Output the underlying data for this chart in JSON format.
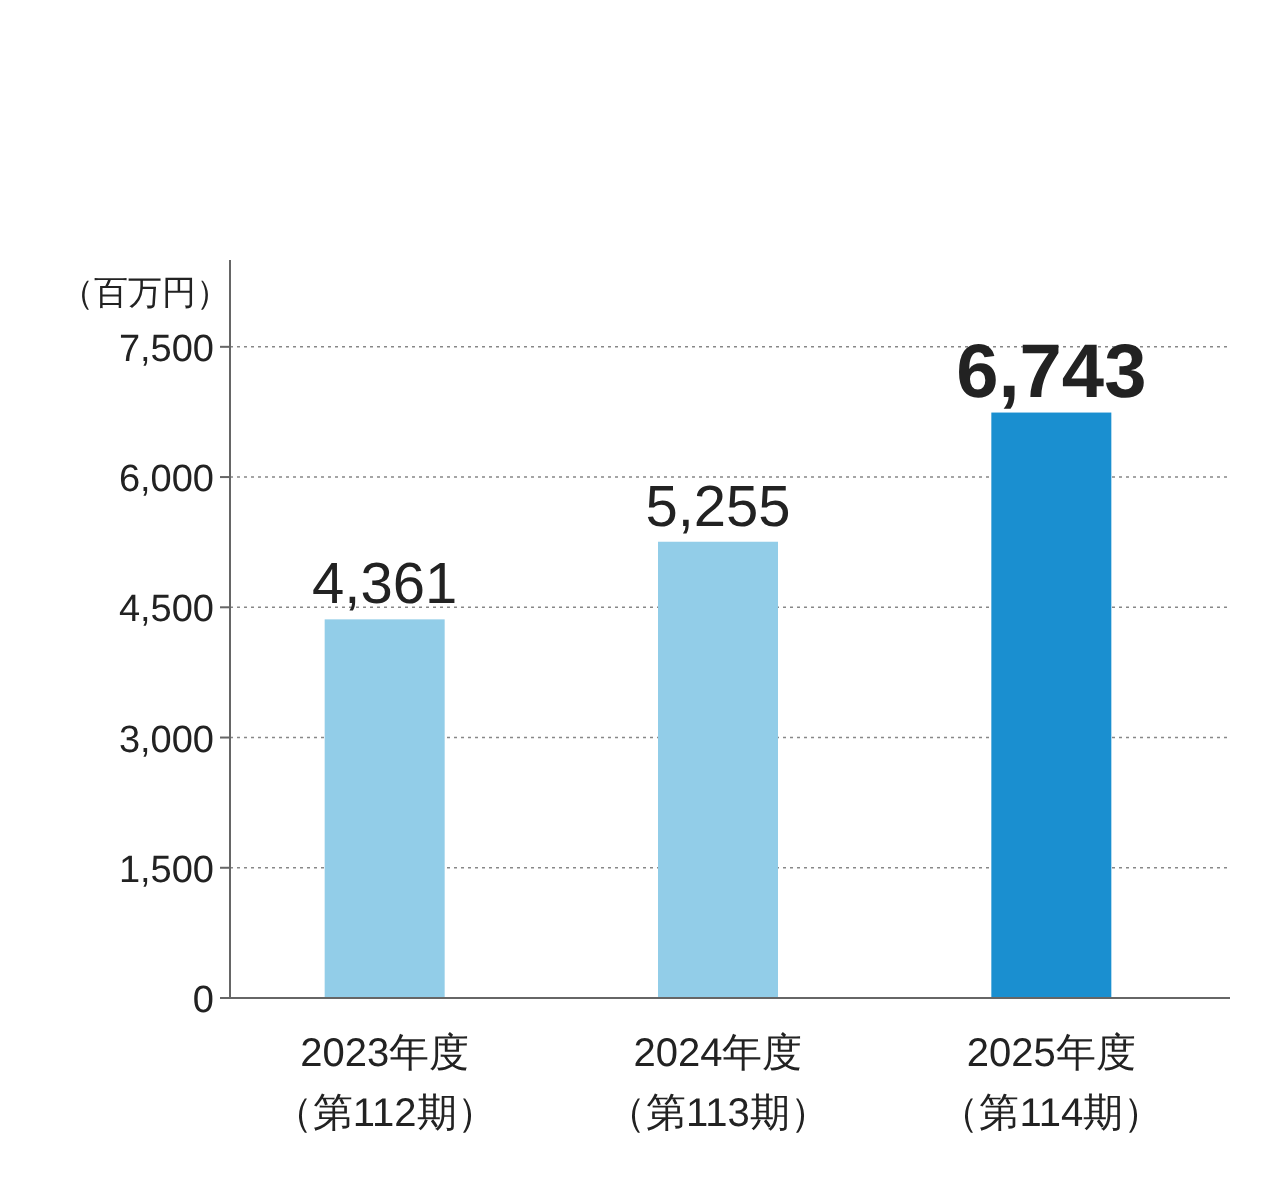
{
  "chart_data": {
    "type": "bar",
    "ylabel": "（百万円）",
    "categories": [
      "2023年度（第112期）",
      "2024年度（第113期）",
      "2025年度（第114期）"
    ],
    "values": [
      4361,
      5255,
      6743
    ],
    "colors": [
      "#92cde8",
      "#92cde8",
      "#1a8fd0"
    ],
    "ylim": [
      0,
      8500
    ],
    "yticks": [
      0,
      {
        "value": 1500,
        "label": "1,500"
      },
      {
        "value": 3000,
        "label": "3,000"
      },
      {
        "value": 4500,
        "label": "4,500"
      },
      {
        "value": 6000,
        "label": "6,000"
      },
      {
        "value": 7500,
        "label": "7,500"
      }
    ],
    "value_labels": [
      "4,361",
      "5,255",
      "6,743"
    ],
    "grid": "y"
  }
}
